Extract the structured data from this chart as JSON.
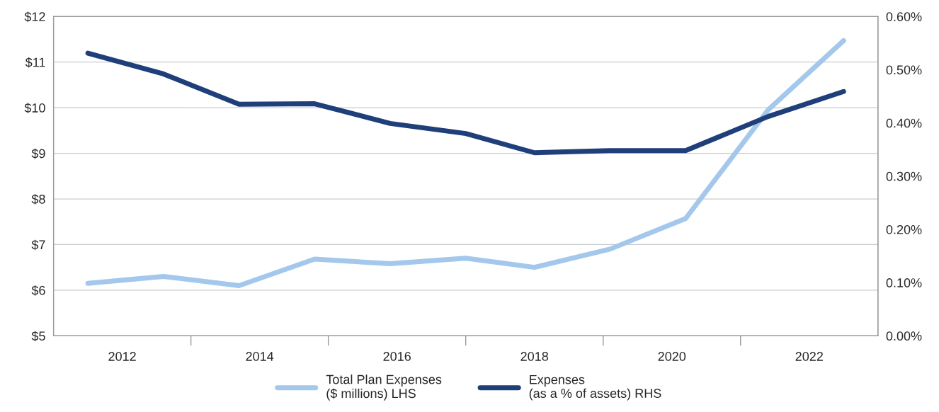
{
  "chart_data": {
    "type": "line",
    "xlim": [
      2011,
      2023
    ],
    "xticks": [
      2012,
      {
        "value": 2013,
        "label": null
      },
      2014,
      {
        "value": 2015,
        "label": null
      },
      2016,
      {
        "value": 2017,
        "label": null
      },
      2018,
      {
        "value": 2019,
        "label": null
      },
      2020,
      {
        "value": 2021,
        "label": null
      },
      2022
    ],
    "ylim": [
      5,
      12
    ],
    "yticks": [
      {
        "value": 5,
        "label": "$5"
      },
      {
        "value": 6,
        "label": "$6"
      },
      {
        "value": 7,
        "label": "$7"
      },
      {
        "value": 8,
        "label": "$8"
      },
      {
        "value": 9,
        "label": "$9"
      },
      {
        "value": 10,
        "label": "$10"
      },
      {
        "value": 11,
        "label": "$11"
      },
      {
        "value": 12,
        "label": "$12"
      }
    ],
    "y2lim": [
      0,
      0.6
    ],
    "y2ticks": [
      {
        "value": 0,
        "label": "0.00%"
      },
      {
        "value": 0.1,
        "label": "0.10%"
      },
      {
        "value": 0.2,
        "label": "0.20%"
      },
      {
        "value": 0.3,
        "label": "0.30%"
      },
      {
        "value": 0.4,
        "label": "0.40%"
      },
      {
        "value": 0.5,
        "label": "0.50%"
      },
      {
        "value": 0.6,
        "label": "0.60%"
      }
    ],
    "grid": "y",
    "legend": "bottom",
    "series": [
      {
        "name": "Total Plan Expenses\n($ millions) LHS",
        "color": "#a3c8ec",
        "x": [
          2011.5,
          2012.6,
          2013.7,
          2014.8,
          2015.9,
          2017.0,
          2018.0,
          2019.1,
          2020.2,
          2021.4,
          2022.5
        ],
        "values": [
          6.15,
          6.3,
          6.1,
          6.68,
          6.58,
          6.7,
          6.5,
          6.9,
          7.57,
          9.95,
          11.47
        ]
      },
      {
        "name": "Expenses\n(as a % of assets) RHS",
        "color": "#1f3f7a",
        "axis": "y2",
        "x": [
          2011.5,
          2012.6,
          2013.7,
          2014.8,
          2015.9,
          2017.0,
          2018.0,
          2019.1,
          2020.2,
          2021.4,
          2022.5
        ],
        "values": [
          0.531,
          0.492,
          0.435,
          0.436,
          0.399,
          0.38,
          0.344,
          0.348,
          0.348,
          0.412,
          0.459
        ]
      }
    ]
  }
}
